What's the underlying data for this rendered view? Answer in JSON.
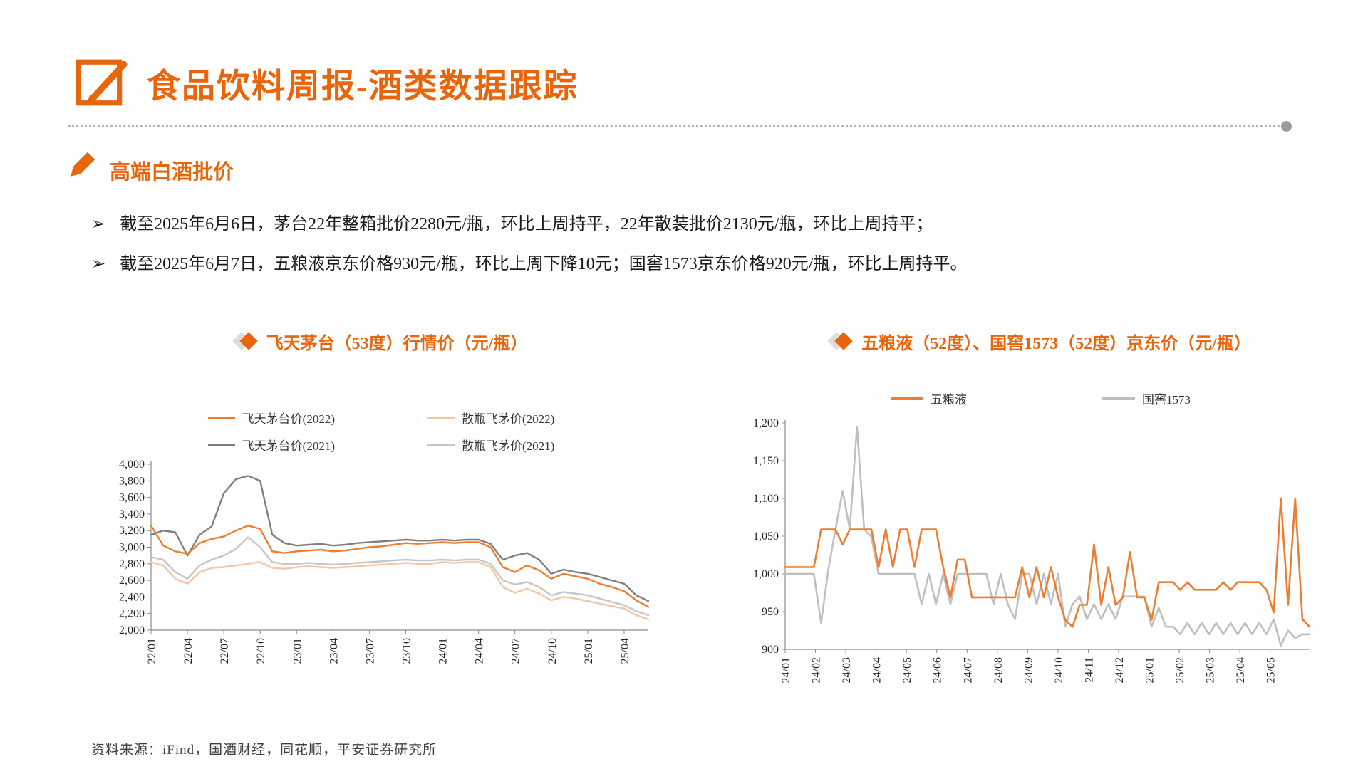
{
  "page": {
    "title": "食品饮料周报-酒类数据跟踪",
    "section_title": "高端白酒批价",
    "bullet_marker": "➢",
    "bullets": [
      "截至2025年6月6日，茅台22年整箱批价2280元/瓶，环比上周持平，22年散装批价2130元/瓶，环比上周持平；",
      "截至2025年6月7日，五粮液京东价格930元/瓶，环比上周下降10元；国窖1573京东价格920元/瓶，环比上周持平。"
    ],
    "source_note": "资料来源：iFind，国酒财经，同花顺，平安证券研究所"
  },
  "icons": {
    "header": "pencil-in-square",
    "section": "pencil",
    "chart_title_marker": "double-diamond",
    "divider_end": "dot"
  },
  "colors": {
    "accent_orange": "#E8650C",
    "series_orange": "#ED7D31",
    "series_peach": "#F7C5A0",
    "series_dark_gray": "#7F7F7F",
    "series_light_gray": "#C6C6C6",
    "divider_gray": "#9C9C9C"
  },
  "chart_data": [
    {
      "type": "line",
      "title": "飞天茅台（53度）行情价（元/瓶）",
      "ylabel": "元/瓶",
      "ylim": [
        2000,
        4000
      ],
      "grid": false,
      "legend_position": "top",
      "x_max": 41,
      "yticks": [
        {
          "v": 4000,
          "label": "4,000"
        },
        {
          "v": 3800,
          "label": "3,800"
        },
        {
          "v": 3600,
          "label": "3,600"
        },
        {
          "v": 3400,
          "label": "3,400"
        },
        {
          "v": 3200,
          "label": "3,200"
        },
        {
          "v": 3000,
          "label": "3,000"
        },
        {
          "v": 2800,
          "label": "2,800"
        },
        {
          "v": 2600,
          "label": "2,600"
        },
        {
          "v": 2400,
          "label": "2,400"
        },
        {
          "v": 2200,
          "label": "2,200"
        },
        {
          "v": 2000,
          "label": "2,000"
        }
      ],
      "xticks": [
        {
          "m": 0,
          "label": "22/01"
        },
        {
          "m": 3,
          "label": "22/04"
        },
        {
          "m": 6,
          "label": "22/07"
        },
        {
          "m": 9,
          "label": "22/10"
        },
        {
          "m": 12,
          "label": "23/01"
        },
        {
          "m": 15,
          "label": "23/04"
        },
        {
          "m": 18,
          "label": "23/07"
        },
        {
          "m": 21,
          "label": "23/10"
        },
        {
          "m": 24,
          "label": "24/01"
        },
        {
          "m": 27,
          "label": "24/04"
        },
        {
          "m": 30,
          "label": "24/07"
        },
        {
          "m": 33,
          "label": "24/10"
        },
        {
          "m": 36,
          "label": "25/01"
        },
        {
          "m": 39,
          "label": "25/04"
        }
      ],
      "series": [
        {
          "name": "飞天茅台价(2022)",
          "color": "#ED7D31",
          "values": [
            3260,
            3020,
            2950,
            2920,
            3050,
            3100,
            3130,
            3200,
            3260,
            3220,
            2950,
            2930,
            2950,
            2960,
            2970,
            2950,
            2960,
            2980,
            3000,
            3010,
            3030,
            3050,
            3040,
            3050,
            3060,
            3050,
            3060,
            3060,
            3000,
            2760,
            2700,
            2780,
            2720,
            2620,
            2680,
            2650,
            2620,
            2560,
            2520,
            2470,
            2360,
            2280
          ]
        },
        {
          "name": "散瓶飞茅价(2022)",
          "color": "#F7C5A0",
          "values": [
            2820,
            2780,
            2620,
            2560,
            2700,
            2750,
            2760,
            2780,
            2800,
            2820,
            2750,
            2740,
            2760,
            2770,
            2760,
            2750,
            2760,
            2770,
            2780,
            2790,
            2800,
            2810,
            2800,
            2800,
            2820,
            2810,
            2820,
            2820,
            2760,
            2520,
            2450,
            2500,
            2440,
            2360,
            2400,
            2380,
            2350,
            2320,
            2290,
            2260,
            2180,
            2130
          ]
        },
        {
          "name": "飞天茅台价(2021)",
          "color": "#7F7F7F",
          "values": [
            3150,
            3200,
            3180,
            2900,
            3150,
            3250,
            3650,
            3820,
            3860,
            3800,
            3150,
            3050,
            3020,
            3030,
            3040,
            3020,
            3030,
            3050,
            3060,
            3070,
            3080,
            3090,
            3080,
            3080,
            3090,
            3080,
            3090,
            3090,
            3040,
            2850,
            2900,
            2930,
            2850,
            2680,
            2730,
            2700,
            2680,
            2640,
            2600,
            2560,
            2420,
            2350
          ]
        },
        {
          "name": "散瓶飞茅价(2021)",
          "color": "#C6C6C6",
          "values": [
            2880,
            2850,
            2700,
            2620,
            2780,
            2850,
            2900,
            2980,
            3120,
            3000,
            2820,
            2800,
            2800,
            2810,
            2800,
            2790,
            2800,
            2810,
            2820,
            2830,
            2840,
            2850,
            2840,
            2840,
            2850,
            2840,
            2850,
            2850,
            2800,
            2600,
            2550,
            2580,
            2520,
            2420,
            2460,
            2440,
            2420,
            2380,
            2340,
            2300,
            2230,
            2180
          ]
        }
      ]
    },
    {
      "type": "line",
      "title": "五粮液（52度）、国窖1573（52度）京东价（元/瓶）",
      "ylabel": "元/瓶",
      "ylim": [
        900,
        1200
      ],
      "grid": false,
      "legend_position": "top",
      "x_max": 17.3,
      "yticks": [
        {
          "v": 1200,
          "label": "1,200"
        },
        {
          "v": 1150,
          "label": "1,150"
        },
        {
          "v": 1100,
          "label": "1,100"
        },
        {
          "v": 1050,
          "label": "1,050"
        },
        {
          "v": 1000,
          "label": "1,000"
        },
        {
          "v": 950,
          "label": "950"
        },
        {
          "v": 900,
          "label": "900"
        }
      ],
      "xticks": [
        {
          "m": 0,
          "label": "24/01"
        },
        {
          "m": 1,
          "label": "24/02"
        },
        {
          "m": 2,
          "label": "24/03"
        },
        {
          "m": 3,
          "label": "24/04"
        },
        {
          "m": 4,
          "label": "24/05"
        },
        {
          "m": 5,
          "label": "24/06"
        },
        {
          "m": 6,
          "label": "24/07"
        },
        {
          "m": 7,
          "label": "24/08"
        },
        {
          "m": 8,
          "label": "24/09"
        },
        {
          "m": 9,
          "label": "24/10"
        },
        {
          "m": 10,
          "label": "24/11"
        },
        {
          "m": 11,
          "label": "24/12"
        },
        {
          "m": 12,
          "label": "25/01"
        },
        {
          "m": 13,
          "label": "25/02"
        },
        {
          "m": 14,
          "label": "25/03"
        },
        {
          "m": 15,
          "label": "25/04"
        },
        {
          "m": 16,
          "label": "25/05"
        }
      ],
      "series": [
        {
          "name": "五粮液",
          "color": "#ED7D31",
          "values": [
            1009,
            1009,
            1009,
            1009,
            1009,
            1059,
            1059,
            1059,
            1039,
            1059,
            1059,
            1059,
            1059,
            1009,
            1059,
            1009,
            1059,
            1059,
            1009,
            1059,
            1059,
            1059,
            1009,
            969,
            1019,
            1019,
            969,
            969,
            969,
            969,
            969,
            969,
            969,
            1009,
            969,
            1009,
            969,
            1009,
            969,
            939,
            930,
            959,
            959,
            1039,
            959,
            1009,
            959,
            969,
            1029,
            969,
            969,
            939,
            989,
            989,
            989,
            979,
            989,
            979,
            979,
            979,
            979,
            989,
            979,
            989,
            989,
            989,
            989,
            979,
            949,
            1100,
            959,
            1100,
            940,
            930
          ]
        },
        {
          "name": "国窖1573",
          "color": "#BFBFBF",
          "values": [
            1000,
            1000,
            1000,
            1000,
            1000,
            935,
            1005,
            1059,
            1110,
            1059,
            1195,
            1059,
            1049,
            1000,
            1000,
            1000,
            1000,
            1000,
            1000,
            960,
            1000,
            960,
            1000,
            960,
            1000,
            1000,
            1000,
            1000,
            1000,
            960,
            1000,
            960,
            940,
            1000,
            1000,
            960,
            1000,
            960,
            1000,
            930,
            960,
            970,
            940,
            960,
            940,
            960,
            940,
            970,
            970,
            970,
            970,
            930,
            955,
            930,
            930,
            920,
            935,
            920,
            935,
            920,
            935,
            920,
            935,
            920,
            935,
            920,
            935,
            920,
            940,
            905,
            925,
            915,
            920,
            920
          ]
        }
      ]
    }
  ]
}
